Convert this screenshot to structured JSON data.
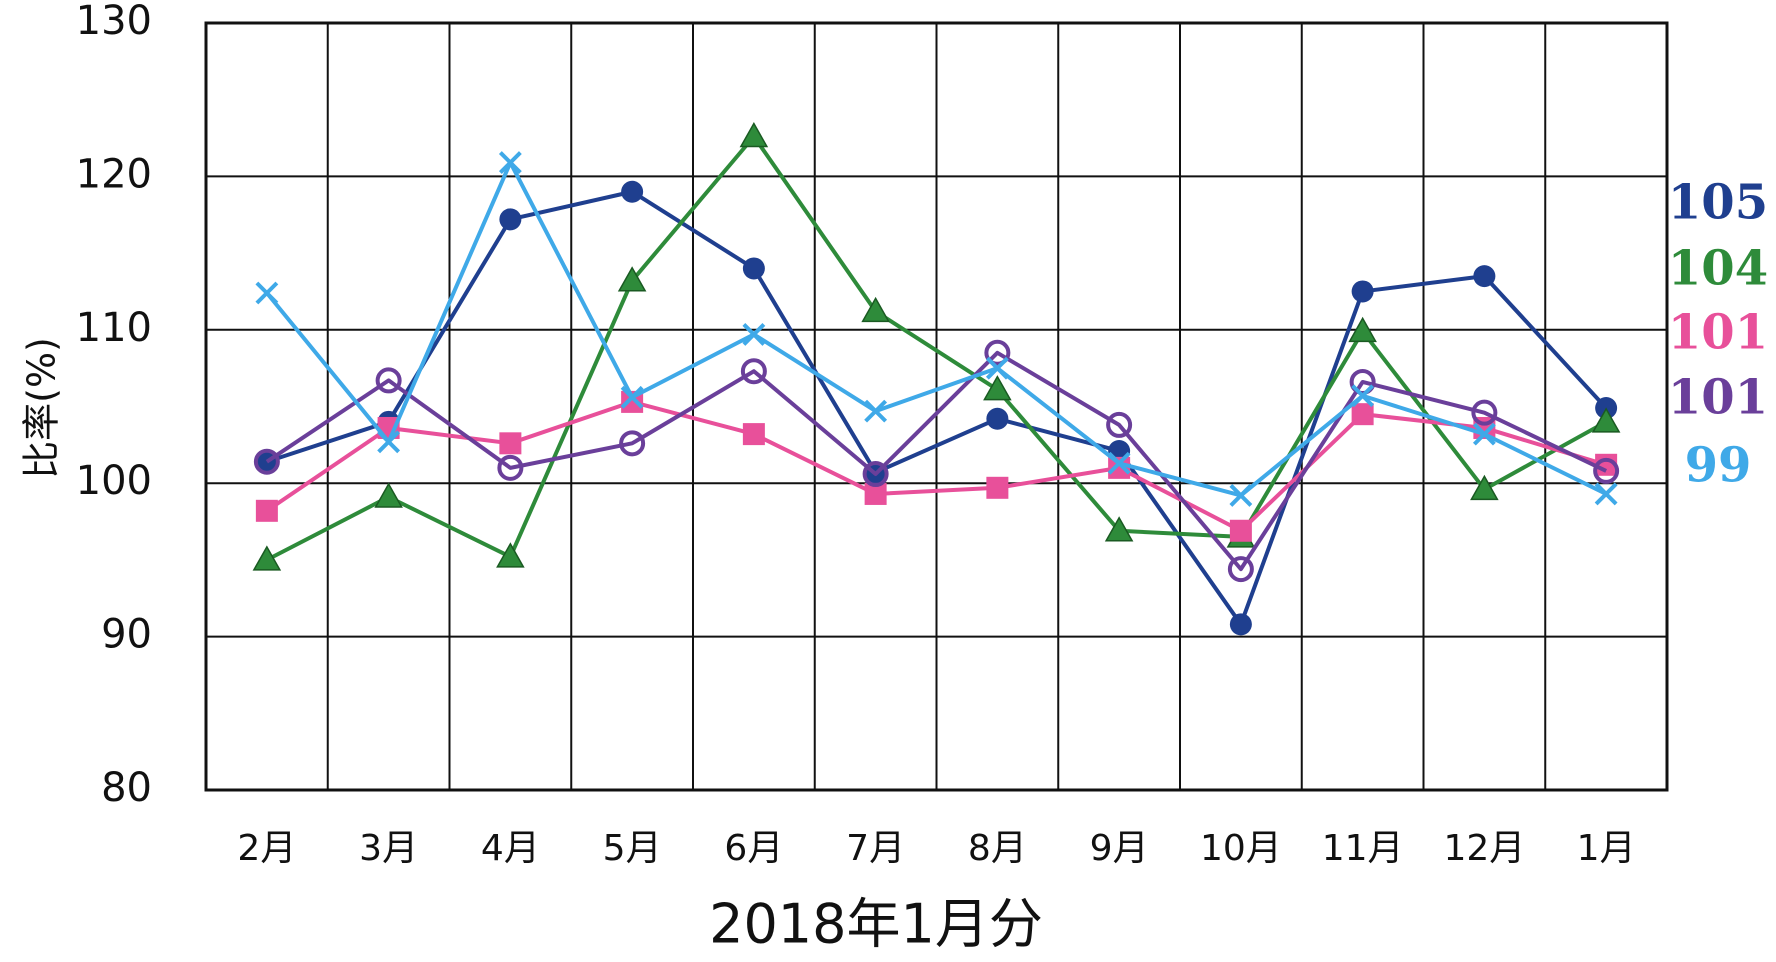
{
  "chart_data": {
    "type": "line",
    "x_label": "2018年1月分",
    "y_label": "比率(%)",
    "categories": [
      "2月",
      "3月",
      "4月",
      "5月",
      "6月",
      "7月",
      "8月",
      "9月",
      "10月",
      "11月",
      "12月",
      "1月"
    ],
    "ylim": [
      80,
      130
    ],
    "yticks": [
      80,
      90,
      100,
      110,
      120,
      130
    ],
    "grid": true,
    "series": [
      {
        "color": "#1f3f8f",
        "marker": "circle",
        "end_label": "105",
        "values": [
          101.4,
          104.0,
          117.2,
          119.0,
          114.0,
          100.7,
          104.2,
          102.1,
          90.8,
          112.5,
          113.5,
          104.9
        ]
      },
      {
        "color": "#2e8b3a",
        "marker": "triangle",
        "end_label": "104",
        "values": [
          95.0,
          99.1,
          95.2,
          113.2,
          122.6,
          111.2,
          106.1,
          96.9,
          96.5,
          109.9,
          99.6,
          104.0
        ]
      },
      {
        "color": "#e8509a",
        "marker": "square",
        "end_label": "101",
        "values": [
          98.2,
          103.6,
          102.6,
          105.3,
          103.2,
          99.3,
          99.7,
          101.0,
          96.9,
          104.5,
          103.6,
          101.2
        ]
      },
      {
        "color": "#6a3f9a",
        "marker": "open-circle",
        "end_label": "101",
        "values": [
          101.4,
          106.7,
          101.0,
          102.6,
          107.3,
          100.6,
          108.5,
          103.8,
          94.4,
          106.6,
          104.6,
          100.8
        ]
      },
      {
        "color": "#3fa9e8",
        "marker": "x",
        "end_label": "99",
        "values": [
          112.4,
          102.7,
          120.9,
          105.6,
          109.7,
          104.7,
          107.5,
          101.3,
          99.2,
          105.7,
          103.2,
          99.3
        ]
      }
    ]
  }
}
